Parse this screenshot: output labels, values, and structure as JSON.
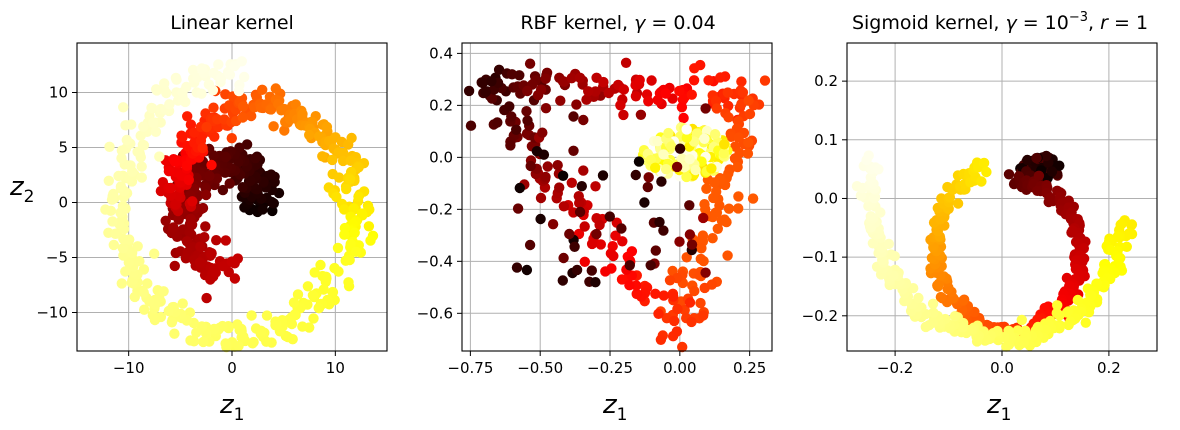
{
  "figure": {
    "ylabel_main": "z",
    "ylabel_sub": "2",
    "xlabel_main": "z",
    "xlabel_sub": "1"
  },
  "chart_data": [
    {
      "type": "scatter",
      "title": "Linear kernel",
      "xlabel": "z₁",
      "ylabel": "z₂",
      "xlim": [
        -15,
        15
      ],
      "ylim": [
        -13.5,
        14.5
      ],
      "xticks": [
        -10,
        0,
        10
      ],
      "xtick_labels": [
        "−10",
        "0",
        "10"
      ],
      "yticks": [
        -10,
        -5,
        0,
        5,
        10
      ],
      "ytick_labels": [
        "−10",
        "−5",
        "0",
        "5",
        "10"
      ],
      "grid": true,
      "colormap": "hot",
      "structure": [
        {
          "shape": "inner arc (spiral head)",
          "center": [
            0,
            0
          ],
          "r_start": 2.5,
          "r_end": 6.0,
          "angle_start_deg": -10,
          "angle_end_deg": 270,
          "color_start": 0.0,
          "color_end": 0.28,
          "spread": 1.5
        },
        {
          "shape": "outer arc",
          "center": [
            2,
            0
          ],
          "r_start": 7.0,
          "r_end": 10.5,
          "angle_start_deg": 185,
          "angle_end_deg": -30,
          "color_start": 0.28,
          "color_end": 0.78,
          "spread": 1.3
        },
        {
          "shape": "outer arc",
          "center": [
            1,
            -1
          ],
          "r_start": 10.5,
          "r_end": 13.0,
          "angle_start_deg": -30,
          "angle_end_deg": -270,
          "color_start": 0.78,
          "color_end": 0.98,
          "spread": 1.2
        }
      ]
    },
    {
      "type": "scatter",
      "title": "RBF kernel, γ = 0.04",
      "title_prefix": "RBF kernel, ",
      "title_var": "γ",
      "title_suffix": " = 0.04",
      "xlabel": "z₁",
      "xlim": [
        -0.78,
        0.33
      ],
      "ylim": [
        -0.745,
        0.44
      ],
      "xticks": [
        -0.75,
        -0.5,
        -0.25,
        0.0,
        0.25
      ],
      "xtick_labels": [
        "−0.75",
        "−0.50",
        "−0.25",
        "0.00",
        "0.25"
      ],
      "yticks": [
        -0.6,
        -0.4,
        -0.2,
        0.0,
        0.2,
        0.4
      ],
      "ytick_labels": [
        "−0.6",
        "−0.4",
        "−0.2",
        "0.0",
        "0.2",
        "0.4"
      ],
      "grid": true,
      "colormap": "hot",
      "structure": [
        {
          "shape": "triangle outline",
          "vertices": [
            [
              -0.72,
              0.28
            ],
            [
              0.25,
              0.24
            ],
            [
              0.0,
              -0.66
            ]
          ],
          "color_start": 0.05,
          "color_end": 0.5,
          "count": 320,
          "spread": 0.04
        },
        {
          "shape": "inner blob",
          "center": [
            0.02,
            0.02
          ],
          "radius": 0.12,
          "color_start": 0.7,
          "color_end": 1.0,
          "count": 160
        },
        {
          "shape": "sparse interior",
          "center": [
            -0.25,
            -0.15
          ],
          "rx": 0.35,
          "ry": 0.35,
          "color_start": 0.0,
          "color_end": 0.25,
          "count": 60
        }
      ]
    },
    {
      "type": "scatter",
      "title": "Sigmoid kernel, γ = 10⁻³, r = 1",
      "title_prefix": "Sigmoid kernel, ",
      "title_var": "γ",
      "title_mid": " = 10",
      "title_sup": "−3",
      "title_sep": ", ",
      "title_r": "r",
      "title_suffix": " = 1",
      "xlabel": "z₁",
      "xlim": [
        -0.29,
        0.29
      ],
      "ylim": [
        -0.26,
        0.265
      ],
      "xticks": [
        -0.2,
        0.0,
        0.2
      ],
      "xtick_labels": [
        "−0.2",
        "0.0",
        "0.2"
      ],
      "yticks": [
        -0.2,
        -0.1,
        0.0,
        0.1,
        0.2
      ],
      "ytick_labels": [
        "−0.2",
        "−0.1",
        "0.0",
        "0.1",
        "0.2"
      ],
      "grid": true,
      "colormap": "hot",
      "structure": [
        {
          "shape": "inner head",
          "center": [
            0.07,
            0.05
          ],
          "radius": 0.03,
          "color_start": 0.0,
          "color_end": 0.12,
          "count": 80
        },
        {
          "shape": "ring",
          "center": [
            0.02,
            -0.09
          ],
          "r_start": 0.12,
          "r_end": 0.15,
          "angle_start_deg": 90,
          "angle_end_deg": -250,
          "color_start": 0.12,
          "color_end": 0.72,
          "spread": 0.012
        },
        {
          "shape": "outer arc",
          "center": [
            0.01,
            0.0
          ],
          "r_start": 0.22,
          "r_end": 0.26,
          "angle_start_deg": -10,
          "angle_end_deg": -195,
          "color_start": 0.72,
          "color_end": 0.98,
          "spread": 0.015
        }
      ]
    }
  ]
}
